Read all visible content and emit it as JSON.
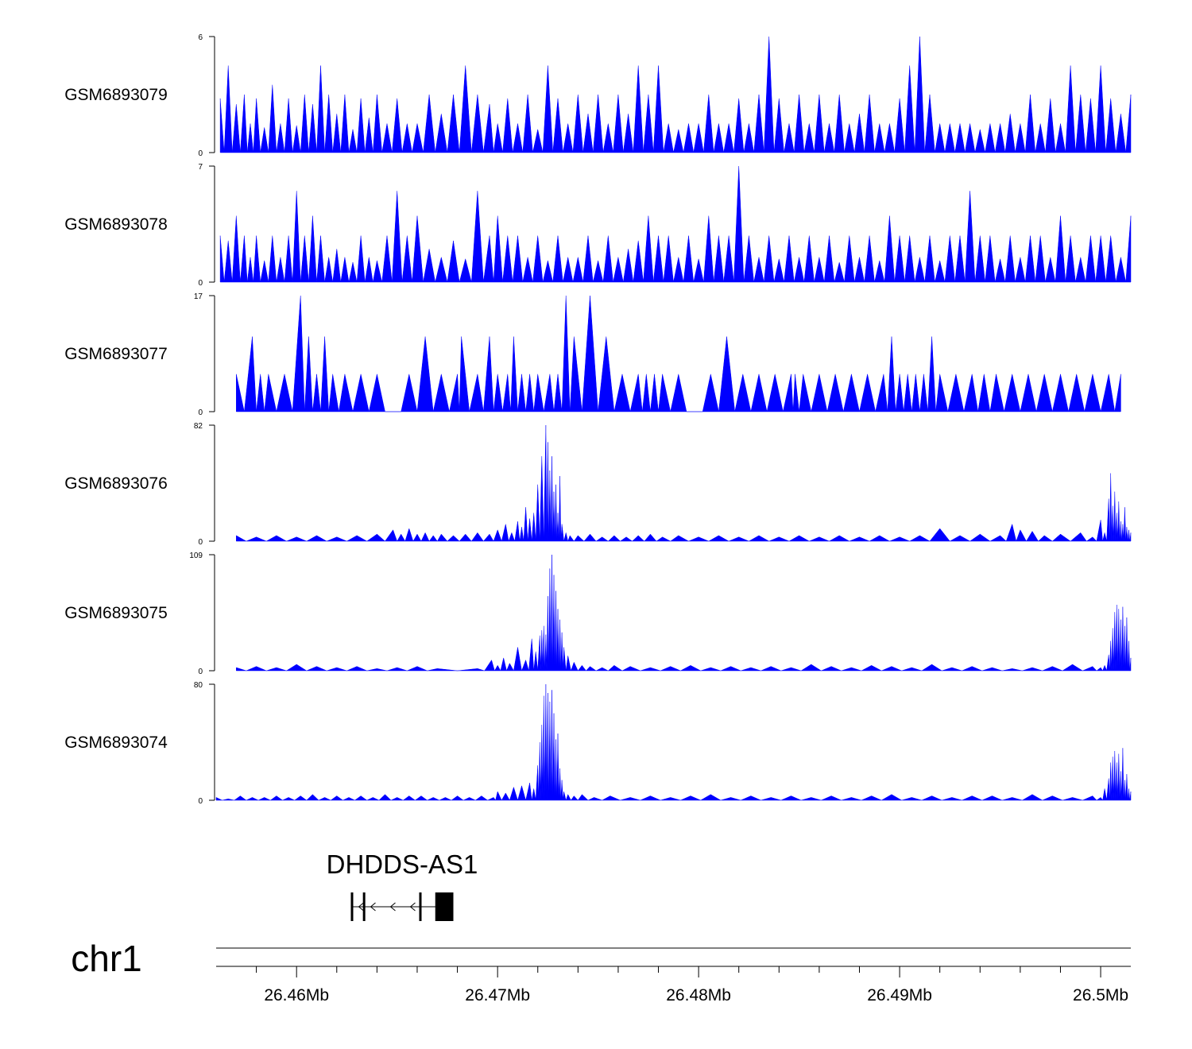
{
  "chart_data": {
    "type": "area",
    "chromosome": "chr1",
    "region": [
      26.456,
      26.5015
    ],
    "region_units": "Mb",
    "fill_color": "#0000ff",
    "tracks": [
      {
        "name": "GSM6893079",
        "ylim": [
          0,
          6
        ],
        "ymax_label": "6",
        "ymin_label": "0",
        "x": [
          26.4562,
          26.4566,
          26.457,
          26.4574,
          26.4577,
          26.458,
          26.4584,
          26.4588,
          26.4592,
          26.4596,
          26.46,
          26.4604,
          26.4608,
          26.4612,
          26.4616,
          26.462,
          26.4624,
          26.4628,
          26.4632,
          26.4636,
          26.464,
          26.4645,
          26.465,
          26.4655,
          26.466,
          26.4666,
          26.4672,
          26.4678,
          26.4684,
          26.469,
          26.4696,
          26.47,
          26.4705,
          26.471,
          26.4715,
          26.472,
          26.4725,
          26.473,
          26.4735,
          26.474,
          26.4745,
          26.475,
          26.4755,
          26.476,
          26.4765,
          26.477,
          26.4775,
          26.478,
          26.4785,
          26.479,
          26.4795,
          26.48,
          26.4805,
          26.481,
          26.4815,
          26.482,
          26.4825,
          26.483,
          26.4835,
          26.484,
          26.4845,
          26.485,
          26.4855,
          26.486,
          26.4865,
          26.487,
          26.4875,
          26.488,
          26.4885,
          26.489,
          26.4895,
          26.49,
          26.4905,
          26.491,
          26.4915,
          26.492,
          26.4925,
          26.493,
          26.4935,
          26.494,
          26.4945,
          26.495,
          26.4955,
          26.496,
          26.4965,
          26.497,
          26.4975,
          26.498,
          26.4985,
          26.499,
          26.4995,
          26.5,
          26.5005,
          26.501,
          26.5015
        ],
        "y": [
          2.8,
          4.5,
          2.5,
          3.0,
          1.5,
          2.8,
          1.3,
          3.5,
          1.5,
          2.8,
          1.4,
          3.0,
          2.5,
          4.5,
          3.0,
          2.0,
          3.0,
          1.2,
          2.8,
          1.8,
          3.0,
          1.5,
          2.8,
          1.5,
          1.5,
          3.0,
          2.0,
          3.0,
          4.5,
          3.0,
          2.5,
          1.5,
          2.8,
          1.5,
          3.0,
          1.2,
          4.5,
          2.8,
          1.5,
          3.0,
          2.0,
          3.0,
          1.5,
          3.0,
          2.0,
          4.5,
          3.0,
          4.5,
          1.5,
          1.2,
          1.5,
          1.5,
          3.0,
          1.5,
          1.5,
          2.8,
          1.5,
          3.0,
          6.0,
          2.8,
          1.5,
          3.0,
          1.5,
          3.0,
          1.5,
          3.0,
          1.5,
          2.0,
          3.0,
          1.5,
          1.5,
          2.8,
          4.5,
          6.0,
          3.0,
          1.5,
          1.5,
          1.5,
          1.5,
          1.2,
          1.5,
          1.5,
          2.0,
          1.5,
          3.0,
          1.5,
          2.8,
          1.5,
          4.5,
          3.0,
          2.8,
          4.5,
          2.8,
          2.0,
          3.0
        ]
      },
      {
        "name": "GSM6893078",
        "ylim": [
          0,
          7
        ],
        "ymax_label": "7",
        "ymin_label": "0",
        "x": [
          26.4562,
          26.4566,
          26.457,
          26.4574,
          26.4577,
          26.458,
          26.4584,
          26.4588,
          26.4592,
          26.4596,
          26.46,
          26.4604,
          26.4608,
          26.4612,
          26.4616,
          26.462,
          26.4624,
          26.4628,
          26.4632,
          26.4636,
          26.464,
          26.4645,
          26.465,
          26.4655,
          26.466,
          26.4666,
          26.4672,
          26.4678,
          26.4684,
          26.469,
          26.4696,
          26.47,
          26.4705,
          26.471,
          26.4715,
          26.472,
          26.4725,
          26.473,
          26.4735,
          26.474,
          26.4745,
          26.475,
          26.4755,
          26.476,
          26.4765,
          26.477,
          26.4775,
          26.478,
          26.4785,
          26.479,
          26.4795,
          26.48,
          26.4805,
          26.481,
          26.4815,
          26.482,
          26.4825,
          26.483,
          26.4835,
          26.484,
          26.4845,
          26.485,
          26.4855,
          26.486,
          26.4865,
          26.487,
          26.4875,
          26.488,
          26.4885,
          26.489,
          26.4895,
          26.49,
          26.4905,
          26.491,
          26.4915,
          26.492,
          26.4925,
          26.493,
          26.4935,
          26.494,
          26.4945,
          26.495,
          26.4955,
          26.496,
          26.4965,
          26.497,
          26.4975,
          26.498,
          26.4985,
          26.499,
          26.4995,
          26.5,
          26.5005,
          26.501,
          26.5015
        ],
        "y": [
          2.8,
          2.5,
          4.0,
          2.8,
          1.5,
          2.8,
          1.3,
          2.8,
          1.5,
          2.8,
          5.5,
          2.8,
          4.0,
          2.8,
          1.5,
          2.0,
          1.5,
          1.2,
          2.8,
          1.5,
          1.3,
          2.8,
          5.5,
          2.8,
          4.0,
          2.0,
          1.5,
          2.5,
          1.4,
          5.5,
          2.8,
          4.0,
          2.8,
          2.8,
          1.5,
          2.8,
          1.3,
          2.8,
          1.5,
          1.5,
          2.8,
          1.3,
          2.8,
          1.5,
          2.0,
          2.5,
          4.0,
          2.8,
          2.8,
          1.5,
          2.8,
          1.4,
          4.0,
          2.8,
          2.8,
          7.0,
          2.8,
          1.5,
          2.8,
          1.4,
          2.8,
          1.5,
          2.8,
          1.5,
          2.8,
          1.2,
          2.8,
          1.5,
          2.8,
          1.3,
          4.0,
          2.8,
          2.8,
          1.5,
          2.8,
          1.3,
          2.8,
          2.8,
          5.5,
          2.8,
          2.8,
          1.4,
          2.8,
          1.5,
          2.8,
          2.8,
          1.5,
          4.0,
          2.8,
          1.5,
          2.8,
          2.8,
          2.8,
          1.5,
          4.0
        ]
      },
      {
        "name": "GSM6893077",
        "ylim": [
          0,
          17
        ],
        "ymax_label": "17",
        "ymin_label": "0",
        "x": [
          26.457,
          26.4578,
          26.4582,
          26.4586,
          26.4594,
          26.4602,
          26.4606,
          26.461,
          26.4614,
          26.4618,
          26.4624,
          26.4632,
          26.464,
          26.4648,
          26.4656,
          26.4664,
          26.4672,
          26.468,
          26.4682,
          26.469,
          26.4696,
          26.47,
          26.4705,
          26.4708,
          26.4712,
          26.4716,
          26.472,
          26.4726,
          26.473,
          26.4734,
          26.4738,
          26.4746,
          26.4754,
          26.4762,
          26.477,
          26.4774,
          26.4778,
          26.4782,
          26.479,
          26.4798,
          26.4806,
          26.4814,
          26.4822,
          26.483,
          26.4838,
          26.4846,
          26.4848,
          26.4852,
          26.486,
          26.4868,
          26.4876,
          26.4884,
          26.4892,
          26.4896,
          26.49,
          26.4904,
          26.4908,
          26.4912,
          26.4916,
          26.492,
          26.4928,
          26.4936,
          26.4942,
          26.4948,
          26.4956,
          26.4964,
          26.4972,
          26.498,
          26.4988,
          26.4996,
          26.5004,
          26.501
        ],
        "y": [
          5.5,
          11.0,
          5.5,
          5.5,
          5.5,
          17.0,
          11.0,
          5.5,
          11.0,
          5.5,
          5.5,
          5.5,
          5.5,
          0.0,
          5.5,
          11.0,
          5.5,
          5.5,
          11.0,
          5.5,
          11.0,
          5.5,
          5.5,
          11.0,
          5.5,
          5.5,
          5.5,
          5.5,
          5.5,
          17.0,
          11.0,
          17.0,
          11.0,
          5.5,
          5.5,
          5.5,
          5.5,
          5.5,
          5.5,
          0.0,
          5.5,
          11.0,
          5.5,
          5.5,
          5.5,
          5.5,
          5.5,
          5.5,
          5.5,
          5.5,
          5.5,
          5.5,
          5.5,
          11.0,
          5.5,
          5.5,
          5.5,
          5.5,
          11.0,
          5.5,
          5.5,
          5.5,
          5.5,
          5.5,
          5.5,
          5.5,
          5.5,
          5.5,
          5.5,
          5.5,
          5.5,
          5.5
        ]
      },
      {
        "name": "GSM6893076",
        "ylim": [
          0,
          82
        ],
        "ymax_label": "82",
        "ymin_label": "0",
        "x": [
          26.457,
          26.458,
          26.459,
          26.46,
          26.461,
          26.462,
          26.463,
          26.464,
          26.4648,
          26.4652,
          26.4656,
          26.466,
          26.4664,
          26.4668,
          26.4672,
          26.4678,
          26.4684,
          26.469,
          26.4696,
          26.47,
          26.4704,
          26.4707,
          26.471,
          26.4712,
          26.4714,
          26.4716,
          26.4718,
          26.472,
          26.4722,
          26.4724,
          26.4725,
          26.4726,
          26.4727,
          26.4728,
          26.4729,
          26.473,
          26.4731,
          26.4732,
          26.4734,
          26.4736,
          26.474,
          26.4746,
          26.4752,
          26.4758,
          26.4764,
          26.477,
          26.4776,
          26.4782,
          26.479,
          26.48,
          26.481,
          26.482,
          26.483,
          26.484,
          26.485,
          26.486,
          26.487,
          26.488,
          26.489,
          26.49,
          26.491,
          26.492,
          26.493,
          26.494,
          26.495,
          26.4956,
          26.496,
          26.4966,
          26.4972,
          26.498,
          26.499,
          26.4996,
          26.5,
          26.5002,
          26.5004,
          26.5005,
          26.5006,
          26.5007,
          26.5008,
          26.5009,
          26.501,
          26.5011,
          26.5012,
          26.5013,
          26.5014,
          26.5015
        ],
        "y": [
          4,
          3,
          4,
          3,
          4,
          3,
          4,
          5,
          8,
          5,
          9,
          5,
          6,
          4,
          5,
          4,
          5,
          6,
          5,
          8,
          12,
          6,
          14,
          10,
          24,
          16,
          20,
          40,
          60,
          82,
          70,
          50,
          60,
          35,
          40,
          20,
          46,
          12,
          6,
          4,
          4,
          5,
          3,
          4,
          3,
          4,
          5,
          3,
          4,
          3,
          4,
          3,
          4,
          3,
          4,
          3,
          4,
          3,
          4,
          3,
          4,
          9,
          4,
          5,
          4,
          12,
          8,
          7,
          4,
          5,
          6,
          3,
          15,
          6,
          30,
          48,
          25,
          35,
          20,
          28,
          14,
          12,
          24,
          10,
          8,
          6
        ]
      },
      {
        "name": "GSM6893075",
        "ylim": [
          0,
          109
        ],
        "ymax_label": "109",
        "ymin_label": "0",
        "x": [
          26.457,
          26.458,
          26.459,
          26.46,
          26.461,
          26.462,
          26.463,
          26.464,
          26.465,
          26.466,
          26.467,
          26.469,
          26.4697,
          26.47,
          26.4703,
          26.4706,
          26.471,
          26.4714,
          26.4717,
          26.4719,
          26.4721,
          26.4722,
          26.4723,
          26.4724,
          26.4725,
          26.4726,
          26.4727,
          26.4728,
          26.4729,
          26.473,
          26.4731,
          26.4732,
          26.4733,
          26.4735,
          26.4738,
          26.4742,
          26.4746,
          26.4752,
          26.4758,
          26.4766,
          26.4776,
          26.4786,
          26.4796,
          26.4806,
          26.4816,
          26.4826,
          26.4836,
          26.4846,
          26.4856,
          26.4866,
          26.4876,
          26.4886,
          26.4896,
          26.4906,
          26.4916,
          26.4926,
          26.4936,
          26.4946,
          26.4956,
          26.4966,
          26.4976,
          26.4986,
          26.4996,
          26.5,
          26.5002,
          26.5004,
          26.5005,
          26.5006,
          26.5007,
          26.5008,
          26.5009,
          26.501,
          26.5011,
          26.5012,
          26.5013,
          26.5014,
          26.5015
        ],
        "y": [
          3,
          4,
          3,
          6,
          4,
          3,
          4,
          2,
          3,
          4,
          2,
          2,
          10,
          5,
          12,
          7,
          22,
          10,
          30,
          18,
          33,
          38,
          42,
          34,
          70,
          96,
          109,
          90,
          75,
          58,
          48,
          36,
          22,
          14,
          8,
          5,
          4,
          3,
          5,
          4,
          3,
          4,
          5,
          3,
          4,
          3,
          4,
          3,
          6,
          4,
          3,
          5,
          4,
          3,
          6,
          3,
          4,
          3,
          2,
          3,
          4,
          6,
          4,
          3,
          5,
          15,
          28,
          40,
          55,
          62,
          58,
          48,
          60,
          42,
          50,
          28,
          12
        ]
      },
      {
        "name": "GSM6893074",
        "ylim": [
          0,
          80
        ],
        "ymax_label": "80",
        "ymin_label": "0",
        "x": [
          26.456,
          26.4566,
          26.4572,
          26.4578,
          26.4584,
          26.459,
          26.4596,
          26.4602,
          26.4608,
          26.4614,
          26.462,
          26.4626,
          26.4632,
          26.4638,
          26.4644,
          26.465,
          26.4656,
          26.4662,
          26.4668,
          26.4674,
          26.468,
          26.4686,
          26.4692,
          26.4698,
          26.47,
          26.4704,
          26.4708,
          26.4712,
          26.4716,
          26.4718,
          26.472,
          26.4721,
          26.4722,
          26.4723,
          26.4724,
          26.4725,
          26.4726,
          26.4727,
          26.4728,
          26.4729,
          26.473,
          26.4731,
          26.4732,
          26.4733,
          26.4735,
          26.4738,
          26.4742,
          26.4748,
          26.4756,
          26.4766,
          26.4776,
          26.4786,
          26.4796,
          26.4806,
          26.4816,
          26.4826,
          26.4836,
          26.4846,
          26.4856,
          26.4866,
          26.4876,
          26.4886,
          26.4896,
          26.4906,
          26.4916,
          26.4926,
          26.4936,
          26.4946,
          26.4956,
          26.4966,
          26.4976,
          26.4986,
          26.4996,
          26.5,
          26.5002,
          26.5004,
          26.5005,
          26.5006,
          26.5007,
          26.5008,
          26.5009,
          26.501,
          26.5011,
          26.5012,
          26.5013,
          26.5014,
          26.5015
        ],
        "y": [
          2,
          1,
          3,
          2,
          2,
          3,
          2,
          3,
          4,
          2,
          3,
          2,
          3,
          2,
          4,
          2,
          3,
          3,
          2,
          2,
          3,
          2,
          3,
          2,
          6,
          5,
          9,
          10,
          12,
          8,
          24,
          40,
          52,
          72,
          80,
          74,
          68,
          76,
          60,
          42,
          46,
          22,
          14,
          6,
          4,
          3,
          4,
          2,
          3,
          2,
          3,
          2,
          3,
          4,
          2,
          3,
          2,
          3,
          2,
          3,
          2,
          3,
          4,
          2,
          3,
          2,
          3,
          3,
          2,
          4,
          3,
          2,
          3,
          2,
          8,
          15,
          26,
          30,
          34,
          26,
          32,
          20,
          36,
          14,
          18,
          8,
          6
        ]
      }
    ],
    "gene": {
      "name": "DHDDS-AS1",
      "strand": "-",
      "start": 26.4627,
      "end": 26.4678,
      "exons": [
        [
          26.4627,
          26.4628
        ],
        [
          26.4633,
          26.46335
        ],
        [
          26.4661,
          26.4662
        ],
        [
          26.4669,
          26.4678
        ]
      ]
    },
    "axis": {
      "ticks": [
        26.46,
        26.47,
        26.48,
        26.49,
        26.5
      ],
      "tick_labels": [
        "26.46Mb",
        "26.47Mb",
        "26.48Mb",
        "26.49Mb",
        "26.5Mb"
      ],
      "minor_ticks": [
        26.458,
        26.462,
        26.464,
        26.466,
        26.468,
        26.472,
        26.474,
        26.476,
        26.478,
        26.482,
        26.484,
        26.486,
        26.488,
        26.492,
        26.494,
        26.496,
        26.498
      ]
    }
  }
}
